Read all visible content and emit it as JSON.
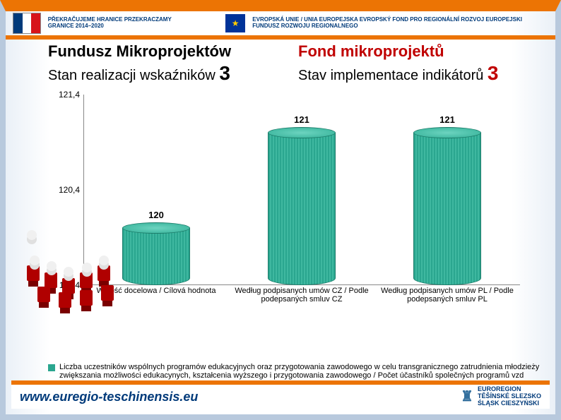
{
  "theme": {
    "accent_orange": "#ec7404",
    "border_blue": "#b8c9dd",
    "bar_color": "#2aa68f",
    "dark_red": "#c00000",
    "footer_link": "#003a7a"
  },
  "header": {
    "czpl_logo_text": "PŘEKRAČUJEME HRANICE PRZEKRACZAMY GRANICE 2014–2020",
    "eu_text": "EVROPSKÁ UNIE / UNIA EUROPEJSKA EVROPSKÝ FOND PRO REGIONÁLNÍ ROZVOJ EUROPEJSKI FUNDUSZ ROZWOJU REGIONALNEGO"
  },
  "title": {
    "left_main": "Fundusz Mikroprojektów",
    "left_sub_prefix": "Stan realizacji wskaźników",
    "left_sub_num": "3",
    "right_main": "Fond mikroprojektů",
    "right_sub_prefix": "Stav implementace indikátorů",
    "right_sub_num": "3"
  },
  "chart": {
    "type": "bar",
    "background_color": "#ffffff",
    "bar_width": 0.55,
    "label_fontsize": 11,
    "tick_fontsize": 12,
    "ylim": [
      119.4,
      121.4
    ],
    "yticks": [
      {
        "value": 119.4,
        "label": "119,4"
      },
      {
        "value": 120.4,
        "label": "120,4"
      },
      {
        "value": 121.4,
        "label": "121,4"
      }
    ],
    "categories": [
      "Watość docelowa / Cílová hodnota",
      "Według podpisanych umów CZ / Podle podepsaných smluv CZ",
      "Według podpisanych umów PL / Podle podepsaných smluv PL"
    ],
    "values": [
      120,
      121,
      121
    ],
    "value_labels": [
      "120",
      "121",
      "121"
    ],
    "bar_colors": [
      "#2aa68f",
      "#2aa68f",
      "#2aa68f"
    ]
  },
  "legend": {
    "swatch_color": "#2aa68f",
    "text": "Liczba uczestników wspólnych programów edukacyjnych oraz przygotowania zawodowego w celu transgranicznego zatrudnienia młodzieży zwiększania możliwości edukacynych, kształcenia wyższego i przygotowania zawodowego / Počet účastníků společných programů vzd"
  },
  "footer": {
    "url": "www.euregio-teschinensis.eu",
    "logo_line1": "EUROREGION",
    "logo_line2": "TĚŠÍNSKÉ SLEZSKO",
    "logo_line3": "ŚLĄSK CIESZYŃSKI"
  }
}
